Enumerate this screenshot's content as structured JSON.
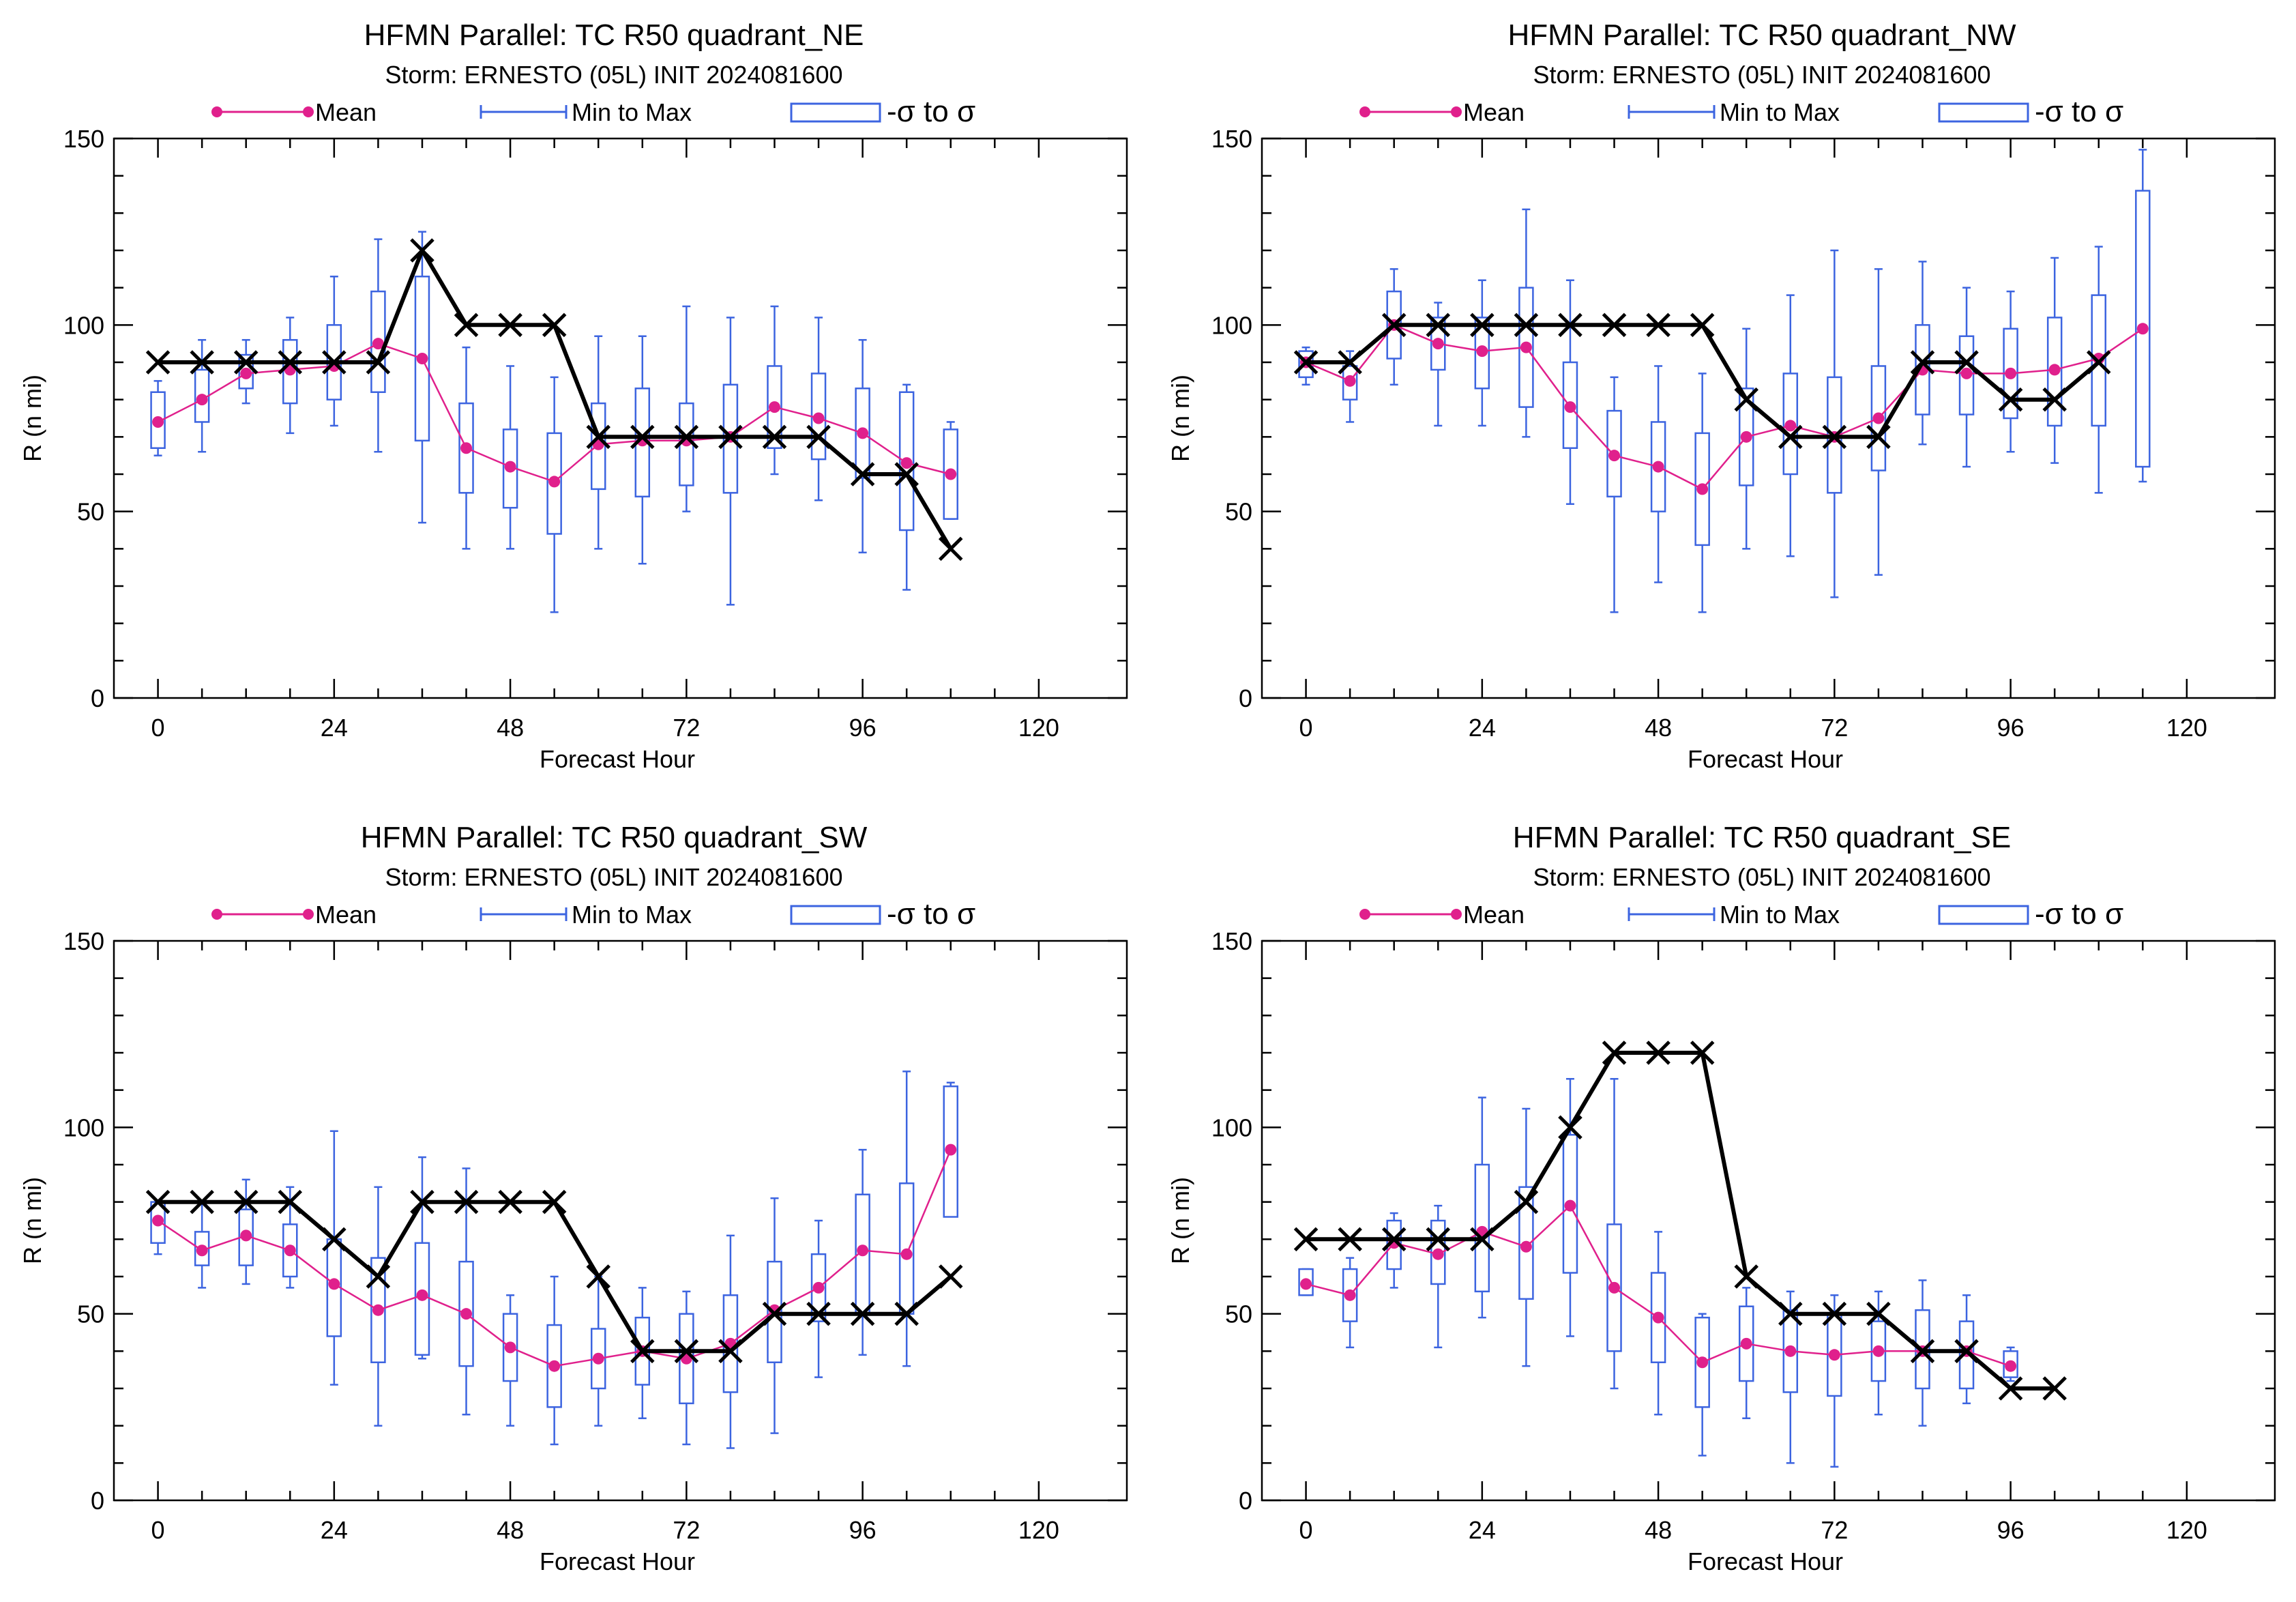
{
  "legend": {
    "mean_label": "Mean",
    "minmax_label": "Min to Max",
    "sigma_label": "-σ to σ",
    "mean_color": "#e0208c",
    "box_color": "#3c64e0",
    "best_track_color": "#000000"
  },
  "chart_data": [
    {
      "type": "box",
      "title": "HFMN Parallel: TC  R50 quadrant_NE",
      "subtitle": "Storm: ERNESTO (05L) INIT 2024081600",
      "xlabel": "Forecast Hour",
      "ylabel": "R (n mi)",
      "xlim": [
        -6,
        132
      ],
      "ylim": [
        0,
        150
      ],
      "xticks": [
        0,
        24,
        48,
        72,
        96,
        120
      ],
      "yticks": [
        0,
        50,
        100,
        150
      ],
      "x": [
        0,
        6,
        12,
        18,
        24,
        30,
        36,
        42,
        48,
        54,
        60,
        66,
        72,
        78,
        84,
        90,
        96,
        102,
        108
      ],
      "mean": [
        74,
        80,
        87,
        88,
        89,
        95,
        91,
        67,
        62,
        58,
        68,
        69,
        69,
        70,
        78,
        75,
        71,
        63,
        60
      ],
      "sd_low": [
        67,
        74,
        83,
        79,
        80,
        82,
        69,
        55,
        51,
        44,
        56,
        54,
        57,
        55,
        67,
        64,
        59,
        45,
        48
      ],
      "sd_high": [
        82,
        88,
        92,
        96,
        100,
        109,
        113,
        79,
        72,
        71,
        79,
        83,
        79,
        84,
        89,
        87,
        83,
        82,
        72
      ],
      "min": [
        65,
        66,
        79,
        71,
        73,
        66,
        47,
        40,
        40,
        23,
        40,
        36,
        50,
        25,
        60,
        53,
        39,
        29,
        48
      ],
      "max": [
        85,
        96,
        96,
        102,
        113,
        123,
        125,
        94,
        89,
        86,
        97,
        97,
        105,
        102,
        105,
        102,
        96,
        84,
        74
      ],
      "best_track": [
        90,
        90,
        90,
        90,
        90,
        90,
        120,
        100,
        100,
        100,
        70,
        70,
        70,
        70,
        70,
        70,
        60,
        60,
        40
      ]
    },
    {
      "type": "box",
      "title": "HFMN Parallel: TC  R50 quadrant_NW",
      "subtitle": "Storm: ERNESTO (05L) INIT 2024081600",
      "xlabel": "Forecast Hour",
      "ylabel": "R (n mi)",
      "xlim": [
        -6,
        132
      ],
      "ylim": [
        0,
        150
      ],
      "xticks": [
        0,
        24,
        48,
        72,
        96,
        120
      ],
      "yticks": [
        0,
        50,
        100,
        150
      ],
      "x": [
        0,
        6,
        12,
        18,
        24,
        30,
        36,
        42,
        48,
        54,
        60,
        66,
        72,
        78,
        84,
        90,
        96,
        102,
        108,
        114
      ],
      "mean": [
        90,
        85,
        100,
        95,
        93,
        94,
        78,
        65,
        62,
        56,
        70,
        73,
        70,
        75,
        88,
        87,
        87,
        88,
        91,
        99
      ],
      "sd_low": [
        86,
        80,
        91,
        88,
        83,
        78,
        67,
        54,
        50,
        41,
        57,
        60,
        55,
        61,
        76,
        76,
        75,
        73,
        73,
        62
      ],
      "sd_high": [
        93,
        89,
        109,
        102,
        102,
        110,
        90,
        77,
        74,
        71,
        83,
        87,
        86,
        89,
        100,
        97,
        99,
        102,
        108,
        136
      ],
      "min": [
        84,
        74,
        84,
        73,
        73,
        70,
        52,
        23,
        31,
        23,
        40,
        38,
        27,
        33,
        68,
        62,
        66,
        63,
        55,
        58
      ],
      "max": [
        94,
        93,
        115,
        106,
        112,
        131,
        112,
        86,
        89,
        87,
        99,
        108,
        120,
        115,
        117,
        110,
        109,
        118,
        121,
        147
      ],
      "best_track": [
        90,
        90,
        100,
        100,
        100,
        100,
        100,
        100,
        100,
        100,
        80,
        70,
        70,
        70,
        90,
        90,
        80,
        80,
        90,
        null
      ]
    },
    {
      "type": "box",
      "title": "HFMN Parallel: TC  R50 quadrant_SW",
      "subtitle": "Storm: ERNESTO (05L) INIT 2024081600",
      "xlabel": "Forecast Hour",
      "ylabel": "R (n mi)",
      "xlim": [
        -6,
        132
      ],
      "ylim": [
        0,
        150
      ],
      "xticks": [
        0,
        24,
        48,
        72,
        96,
        120
      ],
      "yticks": [
        0,
        50,
        100,
        150
      ],
      "x": [
        0,
        6,
        12,
        18,
        24,
        30,
        36,
        42,
        48,
        54,
        60,
        66,
        72,
        78,
        84,
        90,
        96,
        102,
        108
      ],
      "mean": [
        75,
        67,
        71,
        67,
        58,
        51,
        55,
        50,
        41,
        36,
        38,
        40,
        38,
        42,
        51,
        57,
        67,
        66,
        94
      ],
      "sd_low": [
        69,
        63,
        63,
        60,
        44,
        37,
        39,
        36,
        32,
        25,
        30,
        31,
        26,
        29,
        37,
        48,
        50,
        50,
        76
      ],
      "sd_high": [
        80,
        72,
        78,
        74,
        70,
        65,
        69,
        64,
        50,
        47,
        46,
        49,
        50,
        55,
        64,
        66,
        82,
        85,
        111
      ],
      "min": [
        66,
        57,
        58,
        57,
        31,
        20,
        38,
        23,
        20,
        15,
        20,
        22,
        15,
        14,
        18,
        33,
        39,
        36,
        77
      ],
      "max": [
        80,
        80,
        86,
        84,
        99,
        84,
        92,
        89,
        55,
        60,
        60,
        57,
        56,
        71,
        81,
        75,
        94,
        115,
        112
      ],
      "best_track": [
        80,
        80,
        80,
        80,
        70,
        60,
        80,
        80,
        80,
        80,
        60,
        40,
        40,
        40,
        50,
        50,
        50,
        50,
        60
      ]
    },
    {
      "type": "box",
      "title": "HFMN Parallel: TC  R50 quadrant_SE",
      "subtitle": "Storm: ERNESTO (05L) INIT 2024081600",
      "xlabel": "Forecast Hour",
      "ylabel": "R (n mi)",
      "xlim": [
        -6,
        132
      ],
      "ylim": [
        0,
        150
      ],
      "xticks": [
        0,
        24,
        48,
        72,
        96,
        120
      ],
      "yticks": [
        0,
        50,
        100,
        150
      ],
      "x": [
        0,
        6,
        12,
        18,
        24,
        30,
        36,
        42,
        48,
        54,
        60,
        66,
        72,
        78,
        84,
        90,
        96,
        102
      ],
      "mean": [
        58,
        55,
        69,
        66,
        72,
        68,
        79,
        57,
        49,
        37,
        42,
        40,
        39,
        40,
        40,
        40,
        36,
        null
      ],
      "sd_low": [
        55,
        48,
        62,
        58,
        56,
        54,
        61,
        40,
        37,
        25,
        32,
        29,
        28,
        32,
        30,
        30,
        33,
        null
      ],
      "sd_high": [
        62,
        62,
        75,
        75,
        90,
        84,
        98,
        74,
        61,
        49,
        52,
        51,
        50,
        48,
        51,
        48,
        40,
        null
      ],
      "min": [
        55,
        41,
        57,
        41,
        49,
        36,
        44,
        30,
        23,
        12,
        22,
        10,
        9,
        23,
        20,
        26,
        32,
        null
      ],
      "max": [
        62,
        65,
        77,
        79,
        108,
        105,
        113,
        113,
        72,
        50,
        57,
        56,
        55,
        56,
        59,
        55,
        41,
        null
      ],
      "best_track": [
        70,
        70,
        70,
        70,
        70,
        80,
        100,
        120,
        120,
        120,
        60,
        50,
        50,
        50,
        40,
        40,
        30,
        30
      ]
    }
  ]
}
